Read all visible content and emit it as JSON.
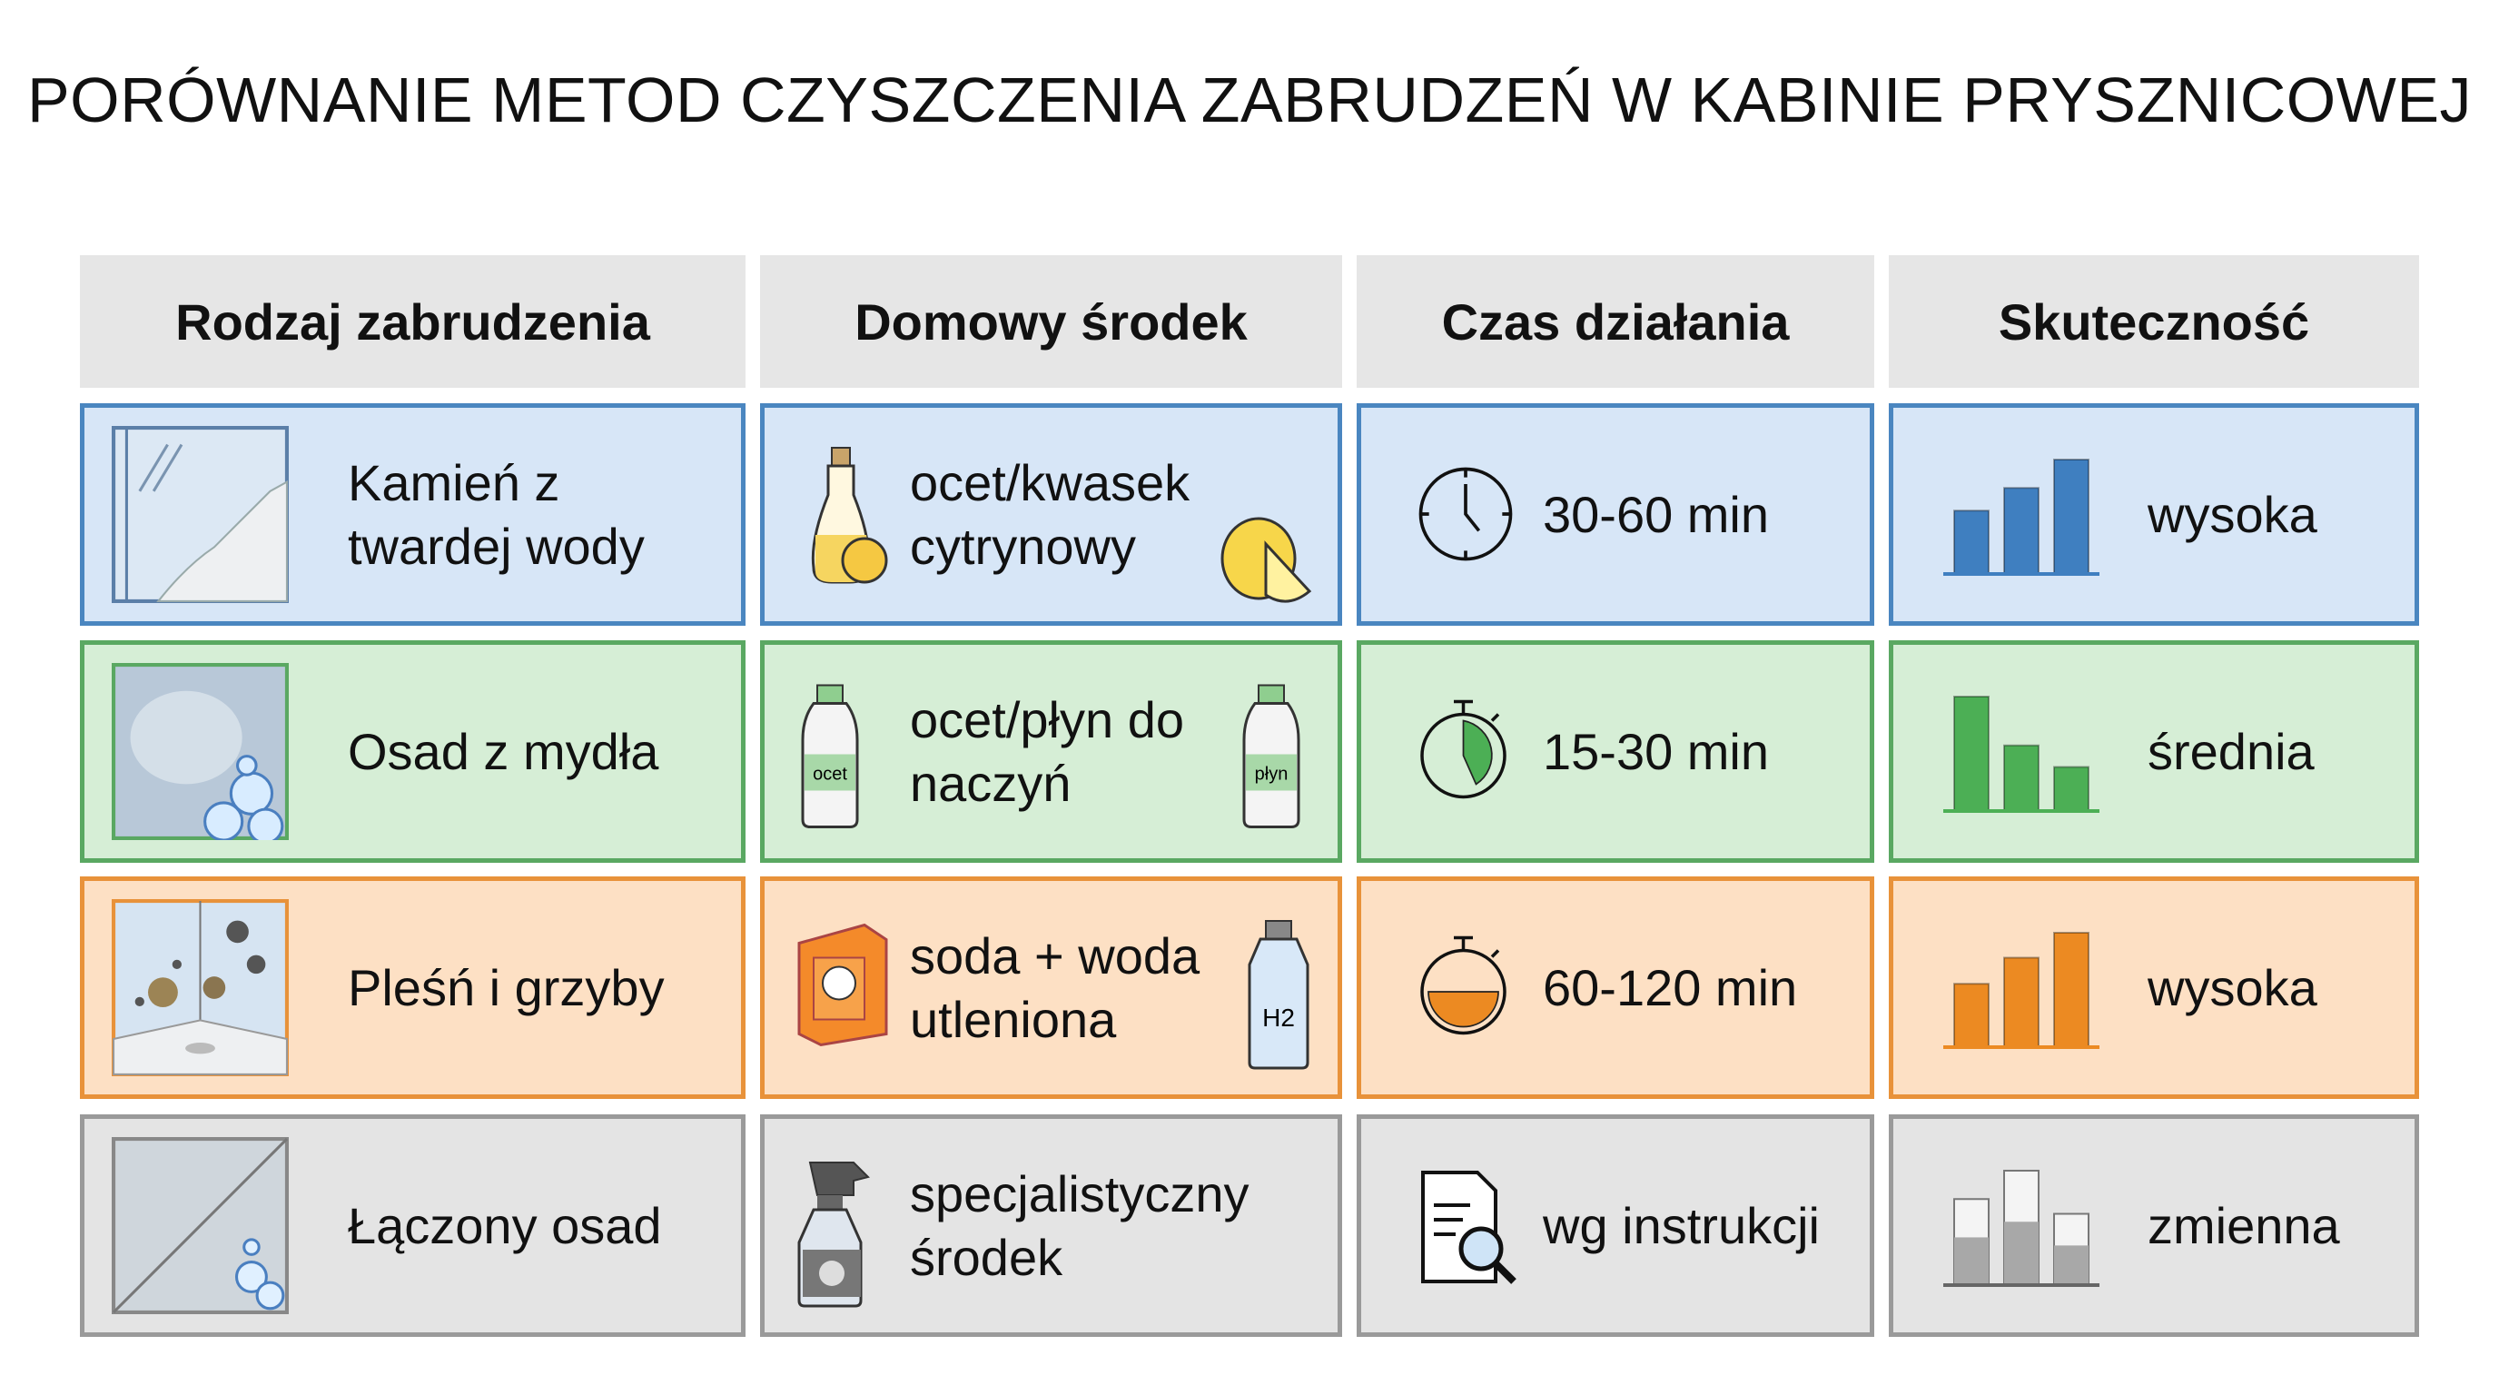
{
  "title": "PORÓWNANIE METOD CZYSZCZENIA ZABRUDZEŃ W KABINIE PRYSZNICOWEJ",
  "headers": [
    "Rodzaj zabrudzenia",
    "Domowy środek",
    "Czas działania",
    "Skuteczność"
  ],
  "rows": [
    {
      "dirt": "Kamień z twardej wody",
      "dirt_icon": "glass-limescale-icon",
      "agent": "ocet/kwasek cytrynowy",
      "agent_icons": [
        "vinegar-cruet-icon",
        "lemon-icon"
      ],
      "time": "30-60 min",
      "time_icon": "clock-icon",
      "effect": "wysoka",
      "bar_levels": [
        0.55,
        0.75,
        1.0
      ],
      "color": "#3f7fc0",
      "bg": "#d7e6f7"
    },
    {
      "dirt": "Osad z mydła",
      "dirt_icon": "soap-scum-glass-icon",
      "agent": "ocet/płyn do naczyń",
      "agent_icons": [
        "vinegar-bottle-icon",
        "dish-soap-pump-icon"
      ],
      "agent_labels": [
        "ocet",
        "płyn"
      ],
      "time": "15-30 min",
      "time_icon": "stopwatch-icon",
      "effect": "średnia",
      "bar_levels": [
        1.0,
        0.57,
        0.38
      ],
      "color": "#4caf55",
      "bg": "#d6eed6"
    },
    {
      "dirt": "Pleśń i grzyby",
      "dirt_icon": "mold-corner-icon",
      "agent": "soda + woda utleniona",
      "agent_icons": [
        "baking-soda-box-icon",
        "peroxide-bottle-icon"
      ],
      "agent_labels": [
        "H2"
      ],
      "time": "60-120 min",
      "time_icon": "stopwatch-icon",
      "effect": "wysoka",
      "bar_levels": [
        0.55,
        0.78,
        1.0
      ],
      "color": "#ec8a22",
      "bg": "#fde0c4"
    },
    {
      "dirt": "Łączony osad",
      "dirt_icon": "mixed-deposit-glass-icon",
      "agent": "specjalistyczny środek",
      "agent_icons": [
        "spray-bottle-icon"
      ],
      "time": "wg instrukcji",
      "time_icon": "document-magnifier-icon",
      "effect": "zmienna",
      "bar_levels": [
        0.75,
        1.0,
        0.62
      ],
      "color": "#a0a0a0",
      "bg": "#e4e4e4"
    }
  ]
}
